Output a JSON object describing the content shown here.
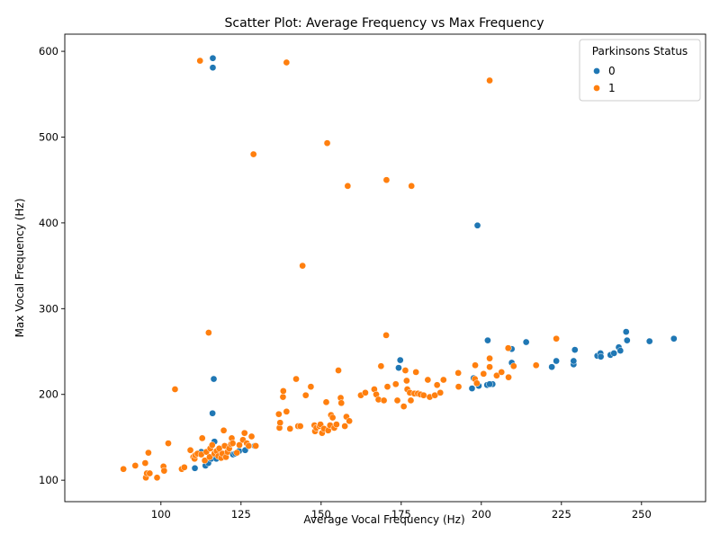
{
  "chart_data": {
    "type": "scatter",
    "title": "Scatter Plot: Average Frequency vs Max Frequency",
    "xlabel": "Average Vocal Frequency (Hz)",
    "ylabel": "Max Vocal Frequency (Hz)",
    "xlim": [
      70,
      270
    ],
    "ylim": [
      75,
      620
    ],
    "xticks": [
      100,
      125,
      150,
      175,
      200,
      225,
      250
    ],
    "yticks": [
      100,
      200,
      300,
      400,
      500,
      600
    ],
    "grid": false,
    "legend": {
      "title": "Parkinsons Status",
      "placement": "top-right"
    },
    "series": [
      {
        "name": "0",
        "color": "#1f77b4",
        "points": [
          [
            116.2,
            592
          ],
          [
            116.2,
            581
          ],
          [
            198.8,
            397
          ],
          [
            116.5,
            218
          ],
          [
            116.1,
            178
          ],
          [
            110.6,
            114
          ],
          [
            112.6,
            133
          ],
          [
            113.9,
            117
          ],
          [
            114.8,
            120
          ],
          [
            115.7,
            125
          ],
          [
            116.7,
            145
          ],
          [
            117.3,
            125
          ],
          [
            119.2,
            130
          ],
          [
            120.1,
            127
          ],
          [
            122.5,
            130
          ],
          [
            123.2,
            131
          ],
          [
            124.4,
            134
          ],
          [
            126.3,
            135
          ],
          [
            129.3,
            140
          ],
          [
            174.2,
            231
          ],
          [
            174.7,
            240
          ],
          [
            197.1,
            207
          ],
          [
            197.6,
            219
          ],
          [
            199.2,
            210
          ],
          [
            201.8,
            211
          ],
          [
            203.5,
            212
          ],
          [
            202.0,
            263
          ],
          [
            202.6,
            212
          ],
          [
            209.5,
            253
          ],
          [
            209.5,
            237
          ],
          [
            214.0,
            261
          ],
          [
            222.0,
            232
          ],
          [
            223.4,
            239
          ],
          [
            228.8,
            235
          ],
          [
            228.8,
            239
          ],
          [
            229.2,
            252
          ],
          [
            236.2,
            245
          ],
          [
            237.2,
            248
          ],
          [
            237.3,
            244
          ],
          [
            240.3,
            246
          ],
          [
            241.4,
            248
          ],
          [
            242.9,
            255
          ],
          [
            243.4,
            251
          ],
          [
            245.2,
            273
          ],
          [
            245.5,
            263
          ],
          [
            252.5,
            262
          ],
          [
            260.1,
            265
          ]
        ]
      },
      {
        "name": "1",
        "color": "#ff7f0e",
        "points": [
          [
            112.2,
            589
          ],
          [
            139.2,
            587
          ],
          [
            202.6,
            566
          ],
          [
            151.9,
            493
          ],
          [
            128.9,
            480
          ],
          [
            170.4,
            450
          ],
          [
            158.3,
            443
          ],
          [
            178.2,
            443
          ],
          [
            144.2,
            350
          ],
          [
            114.9,
            272
          ],
          [
            170.3,
            269
          ],
          [
            88.3,
            113
          ],
          [
            92.0,
            117
          ],
          [
            95.1,
            120
          ],
          [
            95.3,
            103
          ],
          [
            95.6,
            108
          ],
          [
            96.1,
            132
          ],
          [
            96.5,
            108
          ],
          [
            98.8,
            103
          ],
          [
            100.8,
            116
          ],
          [
            101.0,
            111
          ],
          [
            102.3,
            143
          ],
          [
            104.4,
            206
          ],
          [
            106.5,
            113
          ],
          [
            107.3,
            115
          ],
          [
            109.2,
            135
          ],
          [
            110.1,
            127
          ],
          [
            110.5,
            125
          ],
          [
            110.7,
            129
          ],
          [
            111.4,
            131
          ],
          [
            112.6,
            130
          ],
          [
            112.9,
            149
          ],
          [
            113.7,
            123
          ],
          [
            114.2,
            133
          ],
          [
            115.2,
            127
          ],
          [
            115.4,
            137
          ],
          [
            116.0,
            141
          ],
          [
            116.7,
            131
          ],
          [
            117.4,
            134
          ],
          [
            117.9,
            128
          ],
          [
            118.2,
            137
          ],
          [
            118.8,
            126
          ],
          [
            119.2,
            131
          ],
          [
            119.6,
            158
          ],
          [
            119.9,
            140
          ],
          [
            120.3,
            127
          ],
          [
            120.8,
            133
          ],
          [
            121.3,
            137
          ],
          [
            121.9,
            142
          ],
          [
            122.1,
            149
          ],
          [
            122.4,
            143
          ],
          [
            123.7,
            132
          ],
          [
            124.5,
            141
          ],
          [
            125.6,
            147
          ],
          [
            126.1,
            155
          ],
          [
            126.8,
            143
          ],
          [
            127.4,
            140
          ],
          [
            128.3,
            151
          ],
          [
            129.6,
            140
          ],
          [
            136.8,
            177
          ],
          [
            137.0,
            161
          ],
          [
            137.2,
            167
          ],
          [
            138.1,
            197
          ],
          [
            138.2,
            204
          ],
          [
            139.2,
            180
          ],
          [
            140.3,
            160
          ],
          [
            142.2,
            218
          ],
          [
            142.8,
            163
          ],
          [
            143.5,
            163
          ],
          [
            145.2,
            199
          ],
          [
            146.8,
            209
          ],
          [
            147.9,
            164
          ],
          [
            148.1,
            157
          ],
          [
            148.5,
            161
          ],
          [
            149.5,
            163
          ],
          [
            149.8,
            165
          ],
          [
            150.3,
            155
          ],
          [
            150.9,
            160
          ],
          [
            151.6,
            191
          ],
          [
            152.2,
            158
          ],
          [
            152.8,
            164
          ],
          [
            153.1,
            176
          ],
          [
            153.6,
            173
          ],
          [
            154.1,
            161
          ],
          [
            154.8,
            165
          ],
          [
            155.4,
            228
          ],
          [
            156.1,
            196
          ],
          [
            156.3,
            190
          ],
          [
            157.4,
            163
          ],
          [
            157.9,
            174
          ],
          [
            158.8,
            169
          ],
          [
            162.4,
            199
          ],
          [
            163.8,
            202
          ],
          [
            166.6,
            206
          ],
          [
            167.2,
            200
          ],
          [
            167.9,
            194
          ],
          [
            168.7,
            233
          ],
          [
            169.6,
            193
          ],
          [
            170.7,
            209
          ],
          [
            173.3,
            212
          ],
          [
            173.8,
            193
          ],
          [
            175.8,
            186
          ],
          [
            176.3,
            228
          ],
          [
            176.7,
            216
          ],
          [
            176.9,
            206
          ],
          [
            177.7,
            202
          ],
          [
            178.0,
            193
          ],
          [
            179.1,
            201
          ],
          [
            179.6,
            226
          ],
          [
            180.2,
            201
          ],
          [
            181.0,
            200
          ],
          [
            182.0,
            199
          ],
          [
            183.3,
            217
          ],
          [
            183.9,
            197
          ],
          [
            185.5,
            199
          ],
          [
            186.2,
            211
          ],
          [
            187.2,
            202
          ],
          [
            188.2,
            217
          ],
          [
            192.8,
            225
          ],
          [
            192.9,
            209
          ],
          [
            198.0,
            218
          ],
          [
            198.1,
            234
          ],
          [
            198.6,
            213
          ],
          [
            200.7,
            224
          ],
          [
            202.6,
            232
          ],
          [
            202.6,
            242
          ],
          [
            204.8,
            222
          ],
          [
            206.3,
            226
          ],
          [
            208.4,
            254
          ],
          [
            208.5,
            220
          ],
          [
            210.1,
            233
          ],
          [
            217.1,
            234
          ],
          [
            223.4,
            265
          ]
        ]
      }
    ]
  }
}
